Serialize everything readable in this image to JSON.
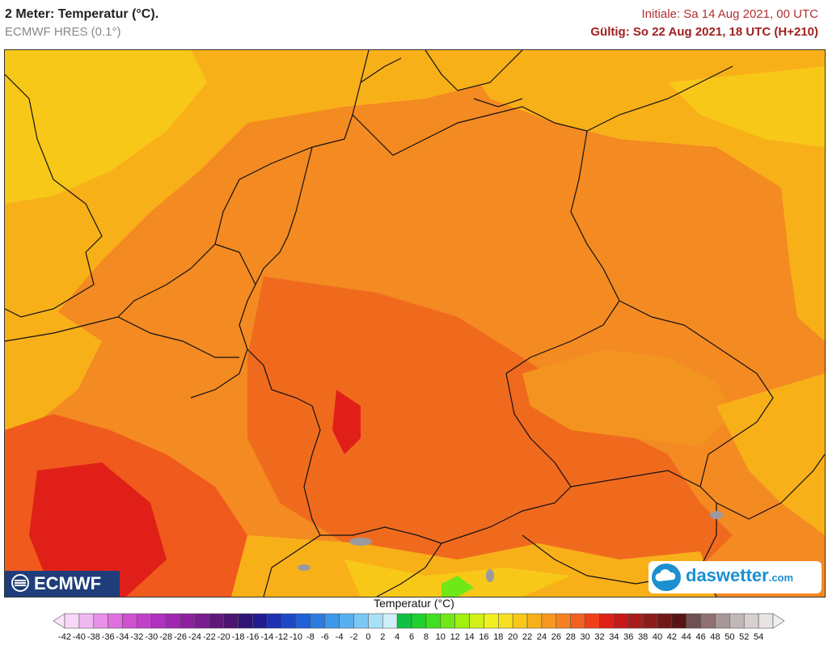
{
  "header": {
    "title": "2 Meter: Temperatur (°C).",
    "model": "ECMWF HRES (0.1°)",
    "init": "Initiale: Sa 14 Aug 2021, 00 UTC",
    "valid": "Gültig: So 22 Aug 2021, 18 UTC (H+210)"
  },
  "logos": {
    "ecmwf": "ECMWF",
    "daswetter": "daswetter",
    "daswetter_tld": ".com"
  },
  "legend": {
    "title": "Temperatur (°C)",
    "ticks": [
      "-42",
      "-40",
      "-38",
      "-36",
      "-34",
      "-32",
      "-30",
      "-28",
      "-26",
      "-24",
      "-22",
      "-20",
      "-18",
      "-16",
      "-14",
      "-12",
      "-10",
      "-8",
      "-6",
      "-4",
      "-2",
      "0",
      "2",
      "4",
      "6",
      "8",
      "10",
      "12",
      "14",
      "16",
      "18",
      "20",
      "22",
      "24",
      "26",
      "28",
      "30",
      "32",
      "34",
      "36",
      "38",
      "40",
      "42",
      "44",
      "46",
      "48",
      "50",
      "52",
      "54"
    ],
    "colors": [
      "#f7d7f7",
      "#f0b8f0",
      "#e890e8",
      "#e070e0",
      "#d050d0",
      "#c040c8",
      "#b030c0",
      "#a028b0",
      "#8c20a0",
      "#781c90",
      "#601878",
      "#4c1470",
      "#301478",
      "#201c90",
      "#1c30b0",
      "#1c48c8",
      "#2060d8",
      "#2c7ce0",
      "#3c98e8",
      "#58b0f0",
      "#7cc8f4",
      "#a8e0f8",
      "#d0f0f8",
      "#10c040",
      "#20d030",
      "#40e020",
      "#70e818",
      "#a0f010",
      "#d0f018",
      "#f0f020",
      "#f8e020",
      "#f8c818",
      "#f8b018",
      "#f89820",
      "#f88020",
      "#f46020",
      "#f04018",
      "#e02018",
      "#c81818",
      "#a81c1c",
      "#8c1c1c",
      "#701818",
      "#581414",
      "#705050",
      "#907070",
      "#a89898",
      "#c0b8b8",
      "#d8d0d0",
      "#e8e4e4"
    ],
    "under_color": "#fce4fc",
    "over_color": "#f0f0f0"
  },
  "map": {
    "field_colors": {
      "cool": "#f8c818",
      "mild": "#f8b018",
      "warm": "#f89820",
      "hot": "#f47820",
      "hotter": "#f05a1c",
      "hottest": "#e02018"
    },
    "border_color": "#111111",
    "lake_color": "#9a9aa0"
  }
}
